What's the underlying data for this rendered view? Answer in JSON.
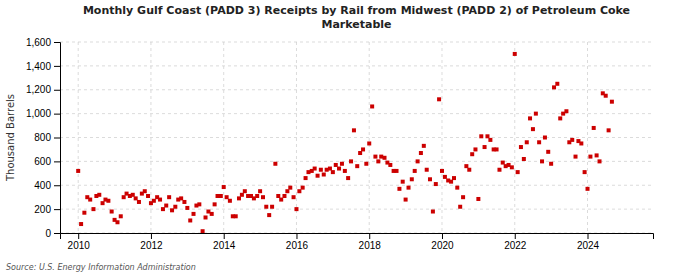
{
  "chart_data": {
    "type": "scatter",
    "title": "Monthly Gulf Coast (PADD 3) Receipts by Rail from Midwest (PADD 2) of Petroleum Coke\nMarketable",
    "ylabel": "Thousand Barrels",
    "annotations": [
      "Source: U.S. Energy Information Administration"
    ],
    "color": "#cc0000",
    "marker": "square",
    "grid": true,
    "xlim": [
      2009.5,
      2025.8
    ],
    "xticks": [
      2010,
      2012,
      2014,
      2016,
      2018,
      2020,
      2022,
      2024
    ],
    "ylim": [
      0,
      1600
    ],
    "yticks": [
      0,
      200,
      400,
      600,
      800,
      {
        "value": 1000,
        "label": "1,000"
      },
      {
        "value": 1200,
        "label": "1,200"
      },
      {
        "value": 1400,
        "label": "1,400"
      },
      {
        "value": 1600,
        "label": "1,600"
      }
    ],
    "x": [
      2010.0,
      2010.08,
      2010.17,
      2010.25,
      2010.33,
      2010.42,
      2010.5,
      2010.58,
      2010.67,
      2010.75,
      2010.83,
      2010.92,
      2011.0,
      2011.08,
      2011.17,
      2011.25,
      2011.33,
      2011.42,
      2011.5,
      2011.58,
      2011.67,
      2011.75,
      2011.83,
      2011.92,
      2012.0,
      2012.08,
      2012.17,
      2012.25,
      2012.33,
      2012.42,
      2012.5,
      2012.58,
      2012.67,
      2012.75,
      2012.83,
      2012.92,
      2013.0,
      2013.08,
      2013.17,
      2013.25,
      2013.33,
      2013.42,
      2013.5,
      2013.58,
      2013.67,
      2013.75,
      2013.83,
      2013.92,
      2014.0,
      2014.08,
      2014.17,
      2014.25,
      2014.33,
      2014.42,
      2014.5,
      2014.58,
      2014.67,
      2014.75,
      2014.83,
      2014.92,
      2015.0,
      2015.08,
      2015.17,
      2015.25,
      2015.33,
      2015.42,
      2015.5,
      2015.58,
      2015.67,
      2015.75,
      2015.83,
      2015.92,
      2016.0,
      2016.08,
      2016.17,
      2016.25,
      2016.33,
      2016.42,
      2016.5,
      2016.58,
      2016.67,
      2016.75,
      2016.83,
      2016.92,
      2017.0,
      2017.08,
      2017.17,
      2017.25,
      2017.33,
      2017.42,
      2017.5,
      2017.58,
      2017.67,
      2017.75,
      2017.83,
      2017.92,
      2018.0,
      2018.08,
      2018.17,
      2018.25,
      2018.33,
      2018.42,
      2018.5,
      2018.58,
      2018.67,
      2018.75,
      2018.83,
      2018.92,
      2019.0,
      2019.08,
      2019.17,
      2019.25,
      2019.33,
      2019.42,
      2019.5,
      2019.58,
      2019.67,
      2019.75,
      2019.83,
      2019.92,
      2020.0,
      2020.08,
      2020.17,
      2020.25,
      2020.33,
      2020.42,
      2020.5,
      2020.58,
      2020.67,
      2020.75,
      2020.83,
      2020.92,
      2021.0,
      2021.08,
      2021.17,
      2021.25,
      2021.33,
      2021.42,
      2021.5,
      2021.58,
      2021.67,
      2021.75,
      2021.83,
      2021.92,
      2022.0,
      2022.08,
      2022.17,
      2022.25,
      2022.33,
      2022.42,
      2022.5,
      2022.58,
      2022.67,
      2022.75,
      2022.83,
      2022.92,
      2023.0,
      2023.08,
      2023.17,
      2023.25,
      2023.33,
      2023.42,
      2023.5,
      2023.58,
      2023.67,
      2023.75,
      2023.83,
      2023.92,
      2024.0,
      2024.08,
      2024.17,
      2024.25,
      2024.33,
      2024.42,
      2024.5,
      2024.58,
      2024.67
    ],
    "y": [
      520,
      75,
      170,
      300,
      280,
      200,
      310,
      320,
      250,
      280,
      270,
      180,
      110,
      90,
      140,
      300,
      330,
      310,
      320,
      290,
      260,
      330,
      350,
      310,
      250,
      270,
      300,
      280,
      200,
      230,
      300,
      190,
      220,
      280,
      290,
      260,
      210,
      105,
      160,
      230,
      240,
      15,
      130,
      180,
      160,
      240,
      310,
      310,
      385,
      300,
      270,
      140,
      140,
      290,
      320,
      350,
      310,
      310,
      290,
      310,
      350,
      300,
      220,
      150,
      220,
      580,
      310,
      280,
      310,
      350,
      380,
      300,
      200,
      350,
      380,
      460,
      510,
      520,
      540,
      480,
      530,
      490,
      530,
      540,
      510,
      570,
      540,
      580,
      520,
      460,
      600,
      860,
      560,
      670,
      700,
      580,
      750,
      1060,
      640,
      600,
      640,
      630,
      590,
      570,
      520,
      520,
      370,
      430,
      280,
      380,
      450,
      520,
      600,
      670,
      730,
      530,
      450,
      180,
      410,
      1120,
      520,
      470,
      440,
      430,
      460,
      380,
      220,
      300,
      560,
      530,
      660,
      700,
      285,
      810,
      720,
      810,
      780,
      700,
      700,
      530,
      590,
      560,
      570,
      550,
      1500,
      510,
      720,
      620,
      760,
      960,
      870,
      1000,
      760,
      600,
      800,
      680,
      580,
      1220,
      1250,
      960,
      1000,
      1020,
      760,
      780,
      640,
      770,
      750,
      510,
      370,
      640,
      880,
      650,
      600,
      1170,
      1150,
      860,
      1100
    ]
  }
}
